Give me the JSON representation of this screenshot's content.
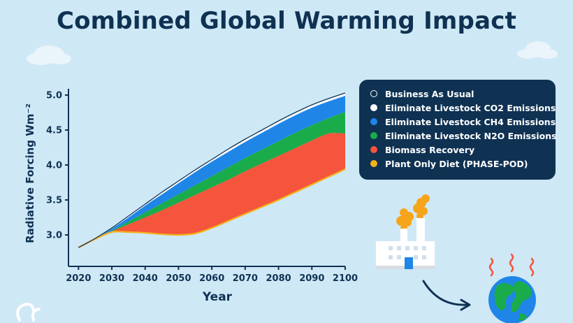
{
  "title": "Combined Global Warming Impact",
  "colors": {
    "background": "#cfe8f6",
    "navy": "#0f3253",
    "ch4": "#1f86e8",
    "n2o": "#1aac4a",
    "biomass": "#f4553c",
    "plant": "#f6b21b",
    "bau": "#ffffff"
  },
  "chart_data": {
    "type": "area",
    "xlabel": "Year",
    "ylabel": "Radiative Forcing Wm⁻²",
    "xlim": [
      2017,
      2100
    ],
    "ylim": [
      2.55,
      5.05
    ],
    "xticks": [
      "2020",
      "2030",
      "2040",
      "2050",
      "2060",
      "2070",
      "2080",
      "2090",
      "2100"
    ],
    "yticks": [
      "3.0",
      "3.5",
      "4.0",
      "4.5",
      "5.0"
    ],
    "grid": false,
    "legend_position": "right",
    "x": [
      2020,
      2025,
      2030,
      2035,
      2040,
      2045,
      2050,
      2055,
      2060,
      2065,
      2070,
      2075,
      2080,
      2085,
      2090,
      2095,
      2100
    ],
    "series": [
      {
        "name": "Business As Usual",
        "color": "#ffffff",
        "values": [
          2.82,
          2.95,
          3.1,
          3.27,
          3.44,
          3.61,
          3.77,
          3.93,
          4.08,
          4.23,
          4.37,
          4.5,
          4.63,
          4.75,
          4.86,
          4.95,
          5.03
        ]
      },
      {
        "name": "Eliminate Livestock CO2 Emissions",
        "color": "#ffffff",
        "values": [
          2.82,
          2.95,
          3.09,
          3.25,
          3.42,
          3.58,
          3.74,
          3.9,
          4.05,
          4.19,
          4.33,
          4.46,
          4.59,
          4.71,
          4.82,
          4.91,
          4.99
        ]
      },
      {
        "name": "Eliminate Livestock CH4 Emissions",
        "color": "#1f86e8",
        "values": [
          2.82,
          2.94,
          3.06,
          3.19,
          3.32,
          3.45,
          3.58,
          3.71,
          3.84,
          3.97,
          4.1,
          4.22,
          4.34,
          4.46,
          4.57,
          4.67,
          4.76
        ]
      },
      {
        "name": "Eliminate Livestock N2O Emissions",
        "color": "#1aac4a",
        "values": [
          2.82,
          2.94,
          3.05,
          3.15,
          3.25,
          3.35,
          3.46,
          3.57,
          3.68,
          3.79,
          3.91,
          4.02,
          4.13,
          4.24,
          4.35,
          4.45,
          4.45
        ]
      },
      {
        "name": "Biomass Recovery",
        "color": "#f4553c",
        "values": [
          2.82,
          2.94,
          3.04,
          3.04,
          3.03,
          3.01,
          3.0,
          3.02,
          3.1,
          3.2,
          3.3,
          3.4,
          3.5,
          3.61,
          3.72,
          3.83,
          3.94
        ]
      },
      {
        "name": "Plant Only Diet (PHASE-POD)",
        "color": "#f6b21b",
        "values": [
          2.82,
          2.94,
          3.04,
          3.04,
          3.03,
          3.01,
          3.0,
          3.02,
          3.1,
          3.2,
          3.3,
          3.4,
          3.5,
          3.61,
          3.72,
          3.83,
          3.94
        ]
      }
    ]
  },
  "icons": [
    "cloud-icon",
    "factory-icon",
    "arrow-icon",
    "earth-icon",
    "heat-waves-icon",
    "logo-icon"
  ]
}
